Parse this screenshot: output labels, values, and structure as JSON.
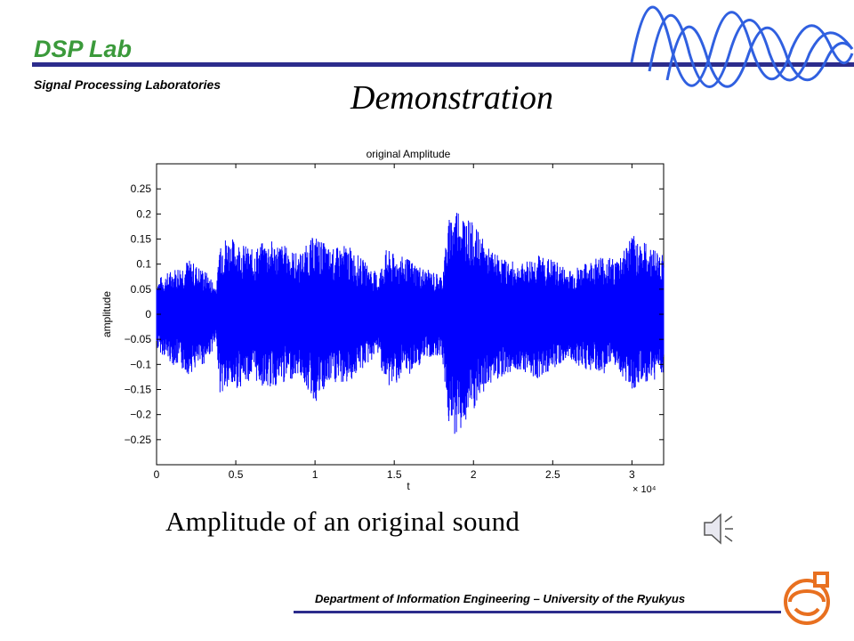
{
  "header": {
    "lab_title": "DSP Lab",
    "lab_subtitle": "Signal Processing Laboratories",
    "slide_title": "Demonstration"
  },
  "caption": "Amplitude of an original sound",
  "footer": "Department of Information Engineering – University of the Ryukyus",
  "colors": {
    "accent_green": "#3b9a3b",
    "rule_navy": "#2c2c8c",
    "wave_blue": "#3060e0",
    "signal_blue": "#0000ff"
  },
  "icons": [
    "wave-logo-icon",
    "speaker-icon",
    "university-seal-icon"
  ],
  "chart_data": {
    "type": "line",
    "title": "original Amplitude",
    "xlabel": "t",
    "ylabel": "amplitude",
    "x_multiplier": "× 10⁴",
    "xlim": [
      0,
      3.2
    ],
    "ylim": [
      -0.3,
      0.3
    ],
    "x_ticks": [
      0,
      0.5,
      1,
      1.5,
      2,
      2.5,
      3
    ],
    "x_tick_labels": [
      "0",
      "0.5",
      "1",
      "1.5",
      "2",
      "2.5",
      "3"
    ],
    "y_ticks": [
      0.25,
      0.2,
      0.15,
      0.1,
      0.05,
      0,
      -0.05,
      -0.1,
      -0.15,
      -0.2,
      -0.25
    ],
    "y_tick_labels": [
      "0.25",
      "0.2",
      "0.15",
      "0.1",
      "0.05",
      "0",
      "−0.05",
      "−0.1",
      "−0.15",
      "−0.2",
      "−0.25"
    ],
    "grid": false,
    "series": [
      {
        "color": "#0000ff",
        "x": [
          0,
          0.1,
          0.2,
          0.3,
          0.38,
          0.4,
          0.5,
          0.6,
          0.7,
          0.8,
          0.9,
          1.0,
          1.1,
          1.2,
          1.3,
          1.4,
          1.45,
          1.5,
          1.6,
          1.7,
          1.8,
          1.85,
          1.9,
          2.0,
          2.1,
          2.2,
          2.3,
          2.4,
          2.5,
          2.6,
          2.7,
          2.8,
          2.9,
          3.0,
          3.1,
          3.2
        ],
        "upper": [
          0.07,
          0.09,
          0.11,
          0.09,
          0.06,
          0.16,
          0.15,
          0.13,
          0.15,
          0.14,
          0.12,
          0.16,
          0.13,
          0.14,
          0.11,
          0.08,
          0.13,
          0.12,
          0.11,
          0.09,
          0.08,
          0.2,
          0.22,
          0.18,
          0.13,
          0.11,
          0.1,
          0.12,
          0.11,
          0.09,
          0.1,
          0.12,
          0.11,
          0.16,
          0.14,
          0.12
        ],
        "lower": [
          -0.07,
          -0.1,
          -0.12,
          -0.1,
          -0.06,
          -0.16,
          -0.15,
          -0.13,
          -0.15,
          -0.14,
          -0.12,
          -0.18,
          -0.14,
          -0.14,
          -0.11,
          -0.08,
          -0.15,
          -0.14,
          -0.12,
          -0.09,
          -0.08,
          -0.24,
          -0.24,
          -0.2,
          -0.14,
          -0.12,
          -0.11,
          -0.13,
          -0.11,
          -0.09,
          -0.11,
          -0.12,
          -0.11,
          -0.15,
          -0.14,
          -0.12
        ]
      }
    ]
  }
}
